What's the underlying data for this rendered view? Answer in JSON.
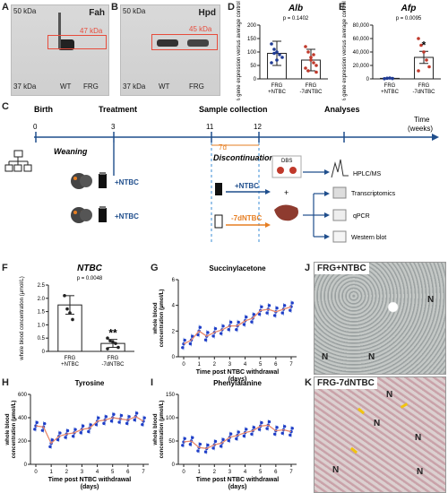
{
  "panels": {
    "A": "A",
    "B": "B",
    "C": "C",
    "D": "D",
    "E": "E",
    "F": "F",
    "G": "G",
    "H": "H",
    "I": "I",
    "J": "J",
    "K": "K"
  },
  "blot_a": {
    "title": "Fah",
    "kda_top": "50 kDa",
    "kda_band": "47 kDa",
    "kda_bottom": "37 kDa",
    "lane1": "WT",
    "lane2": "FRG"
  },
  "blot_b": {
    "title": "Hpd",
    "kda_top": "50 kDa",
    "kda_band": "45 kDa",
    "kda_bottom": "37 kDa",
    "lane1": "WT",
    "lane2": "FRG"
  },
  "timeline": {
    "birth": "Birth",
    "treatment": "Treatment",
    "sample_collection": "Sample collection",
    "analyses": "Analyses",
    "time_label": "Time",
    "time_unit": "(weeks)",
    "ticks": [
      "0",
      "3",
      "11",
      "12"
    ],
    "weaning": "Weaning",
    "discontinuation": "Discontinuation",
    "duration": "7d",
    "plus_ntbc_1": "+NTBC",
    "plus_ntbc_2": "+NTBC",
    "plus_ntbc_3": "+NTBC",
    "minus_7dntbc": "-7dNTBC",
    "dbs": "DBS",
    "hplc": "HPLC/MS",
    "transcriptomics": "Transcriptomics",
    "qpcr": "qPCR",
    "western": "Western blot"
  },
  "micro_j": {
    "title": "FRG+NTBC",
    "n": "N"
  },
  "micro_k": {
    "title": "FRG-7dNTBC",
    "n": "N"
  },
  "charts": {
    "D": {
      "type": "bar",
      "title": "Alb",
      "pvalue": "p = 0.1402",
      "ylabel": "% gene expression versus average control",
      "ylim": [
        0,
        200
      ],
      "yticks": [
        0,
        50,
        100,
        150,
        200
      ],
      "categories": [
        "FRG +NTBC",
        "FRG -7dNTBC"
      ],
      "values": [
        95,
        70
      ],
      "errors": [
        45,
        40
      ],
      "points": [
        [
          130,
          110,
          100,
          90,
          80,
          60,
          95,
          70
        ],
        [
          120,
          100,
          80,
          60,
          50,
          40,
          30,
          70,
          90,
          25
        ]
      ],
      "colors": [
        "#1f3a93",
        "#c0392b"
      ]
    },
    "E": {
      "type": "bar",
      "title": "Afp",
      "pvalue": "p = 0.0095",
      "sig": "*",
      "ylabel": "% gene expression versus average control",
      "ylim": [
        0,
        80000
      ],
      "yticks": [
        0,
        20000,
        40000,
        60000,
        80000
      ],
      "ytick_labels": [
        "0",
        "20,000",
        "40,000",
        "60,000",
        "80,000"
      ],
      "categories": [
        "FRG +NTBC",
        "FRG -7dNTBC"
      ],
      "values": [
        800,
        32000
      ],
      "errors": [
        400,
        9000
      ],
      "points": [
        [
          300,
          900,
          1200,
          600
        ],
        [
          60000,
          50000,
          40000,
          28000,
          18000,
          12000
        ]
      ],
      "colors": [
        "#1f3a93",
        "#c0392b"
      ]
    },
    "F": {
      "type": "bar",
      "title": "NTBC",
      "pvalue": "p = 0.0048",
      "sig": "**",
      "ylabel": "whole blood concentration (µmol/L)",
      "ylim": [
        0,
        2.5
      ],
      "yticks": [
        0,
        0.5,
        1.0,
        1.5,
        2.0,
        2.5
      ],
      "ytick_labels": [
        "0",
        "0.5",
        "1.0",
        "1.5",
        "2.0",
        "2.5"
      ],
      "categories": [
        "FRG +NTBC",
        "FRG -7dNTBC"
      ],
      "values": [
        1.75,
        0.3
      ],
      "errors": [
        0.35,
        0.15
      ],
      "points": [
        [
          2.1,
          1.6,
          1.45,
          1.2
        ],
        [
          0.5,
          0.4,
          0.35,
          0.3,
          0.15,
          0.1
        ]
      ]
    },
    "G": {
      "type": "line",
      "title": "Succinylacetone",
      "xlabel": "Time post NTBC withdrawal (days)",
      "ylabel": "whole blood concentration (µmol/L)",
      "ylim": [
        0,
        6
      ],
      "yticks": [
        0,
        2,
        4,
        6
      ],
      "x": [
        0,
        0.5,
        1,
        1.5,
        2,
        2.5,
        3,
        3.5,
        4,
        4.5,
        5,
        5.5,
        6,
        6.5,
        7
      ],
      "mean": [
        1.0,
        1.3,
        2.0,
        1.6,
        1.9,
        2.1,
        2.4,
        2.4,
        2.8,
        3.0,
        3.6,
        3.7,
        3.5,
        3.7,
        3.9
      ]
    },
    "H": {
      "type": "line",
      "title": "Tyrosine",
      "xlabel": "Time post NTBC withdrawal (days)",
      "ylabel": "whole blood concentration (µmol/L)",
      "ylim": [
        0,
        600
      ],
      "yticks": [
        0,
        200,
        400,
        600
      ],
      "x": [
        0,
        0.5,
        1,
        1.5,
        2,
        2.5,
        3,
        3.5,
        4,
        4.5,
        5,
        5.5,
        6,
        6.5,
        7
      ],
      "mean": [
        330,
        320,
        180,
        240,
        260,
        270,
        300,
        310,
        370,
        380,
        400,
        390,
        380,
        410,
        370
      ]
    },
    "I": {
      "type": "line",
      "title": "Phenylalanine",
      "xlabel": "Time post NTBC withdrawal (days)",
      "ylabel": "whole blood concentration (µmol/L)",
      "ylim": [
        0,
        150
      ],
      "yticks": [
        0,
        50,
        100,
        150
      ],
      "x": [
        0,
        0.5,
        1,
        1.5,
        2,
        2.5,
        3,
        3.5,
        4,
        4.5,
        5,
        5.5,
        6,
        6.5,
        7
      ],
      "mean": [
        48,
        50,
        36,
        34,
        42,
        46,
        58,
        62,
        68,
        72,
        82,
        84,
        72,
        74,
        70
      ]
    },
    "xticks": [
      "0",
      "1",
      "2",
      "3",
      "4",
      "5",
      "6",
      "7"
    ]
  }
}
